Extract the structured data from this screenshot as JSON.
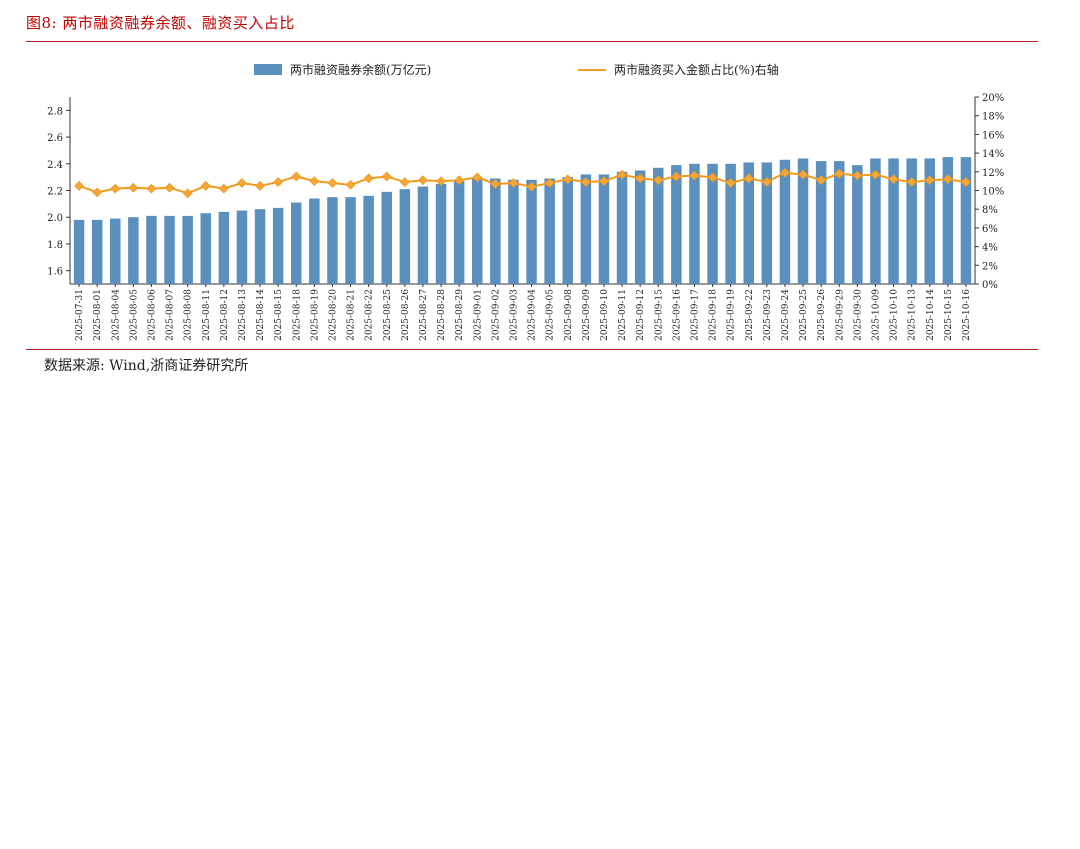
{
  "figure": {
    "title": "图8:  两市融资融券余额、融资买入占比",
    "source": "数据来源:  Wind,浙商证券研究所"
  },
  "colors": {
    "bar": "#5b8fbe",
    "line": "#f39a1e",
    "marker": "#f5a83a",
    "title": "#c00000"
  },
  "chart_data": {
    "type": "bar+line",
    "title": "两市融资融券余额、融资买入占比",
    "legend": [
      "两市融资融券余额(万亿元)",
      "两市融资买入金额占比(%)右轴"
    ],
    "legend_position": "top",
    "categories": [
      "2025-07-31",
      "2025-08-01",
      "2025-08-04",
      "2025-08-05",
      "2025-08-06",
      "2025-08-07",
      "2025-08-08",
      "2025-08-11",
      "2025-08-12",
      "2025-08-13",
      "2025-08-14",
      "2025-08-15",
      "2025-08-18",
      "2025-08-19",
      "2025-08-20",
      "2025-08-21",
      "2025-08-22",
      "2025-08-25",
      "2025-08-26",
      "2025-08-27",
      "2025-08-28",
      "2025-08-29",
      "2025-09-01",
      "2025-09-02",
      "2025-09-03",
      "2025-09-04",
      "2025-09-05",
      "2025-09-08",
      "2025-09-09",
      "2025-09-10",
      "2025-09-11",
      "2025-09-12",
      "2025-09-15",
      "2025-09-16",
      "2025-09-17",
      "2025-09-18",
      "2025-09-19",
      "2025-09-22",
      "2025-09-23",
      "2025-09-24",
      "2025-09-25",
      "2025-09-26",
      "2025-09-29",
      "2025-09-30",
      "2025-10-09",
      "2025-10-10",
      "2025-10-13",
      "2025-10-14",
      "2025-10-15",
      "2025-10-16"
    ],
    "series": [
      {
        "name": "两市融资融券余额(万亿元)",
        "type": "bar",
        "axis": "left",
        "values": [
          1.98,
          1.98,
          1.99,
          2.0,
          2.01,
          2.01,
          2.01,
          2.03,
          2.04,
          2.05,
          2.06,
          2.07,
          2.11,
          2.14,
          2.15,
          2.15,
          2.16,
          2.19,
          2.21,
          2.23,
          2.25,
          2.27,
          2.29,
          2.29,
          2.28,
          2.28,
          2.29,
          2.3,
          2.32,
          2.32,
          2.34,
          2.35,
          2.37,
          2.39,
          2.4,
          2.4,
          2.4,
          2.41,
          2.41,
          2.43,
          2.44,
          2.42,
          2.42,
          2.39,
          2.44,
          2.44,
          2.44,
          2.44,
          2.45,
          2.45
        ]
      },
      {
        "name": "两市融资买入金额占比(%)右轴",
        "type": "line",
        "axis": "right",
        "values": [
          10.5,
          9.8,
          10.2,
          10.3,
          10.2,
          10.3,
          9.7,
          10.5,
          10.2,
          10.8,
          10.5,
          10.9,
          11.5,
          11.0,
          10.8,
          10.6,
          11.3,
          11.5,
          10.9,
          11.1,
          11.0,
          11.1,
          11.4,
          10.7,
          10.8,
          10.4,
          10.8,
          11.2,
          10.9,
          11.0,
          11.7,
          11.3,
          11.1,
          11.5,
          11.6,
          11.4,
          10.8,
          11.3,
          10.9,
          11.9,
          11.7,
          11.1,
          11.8,
          11.6,
          11.7,
          11.2,
          10.9,
          11.1,
          11.2,
          10.9
        ]
      }
    ],
    "yaxis_left": {
      "min": 1.5,
      "max": 2.9,
      "ticks": [
        "1.6",
        "1.8",
        "2.0",
        "2.2",
        "2.4",
        "2.6",
        "2.8"
      ]
    },
    "yaxis_right": {
      "min": 0,
      "max": 20,
      "ticks": [
        "0%",
        "2%",
        "4%",
        "6%",
        "8%",
        "10%",
        "12%",
        "14%",
        "16%",
        "18%",
        "20%"
      ]
    }
  }
}
